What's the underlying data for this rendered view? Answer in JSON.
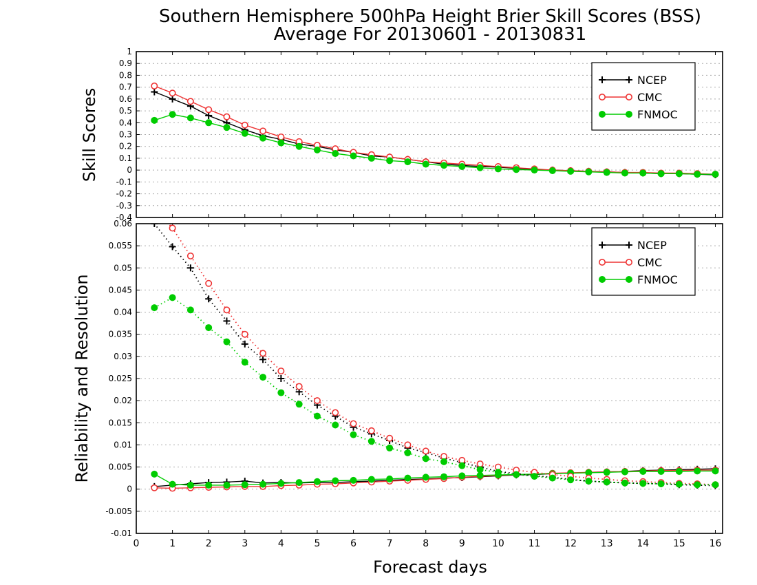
{
  "title_line1": "Southern Hemisphere 500hPa Height Brier Skill Scores (BSS)",
  "title_line2": "Average For 20130601 - 20130831",
  "colors": {
    "NCEP": "#000000",
    "CMC": "#ee3333",
    "FNMOC": "#00cc00",
    "grid": "#aaaaaa"
  },
  "chart_data": [
    {
      "type": "line",
      "ylabel": "Skill Scores",
      "xlim": [
        0,
        16.2
      ],
      "ylim": [
        -0.4,
        1
      ],
      "x_ticks": [
        "0",
        "1",
        "2",
        "3",
        "4",
        "5",
        "6",
        "7",
        "8",
        "9",
        "10",
        "11",
        "12",
        "13",
        "14",
        "15",
        "16"
      ],
      "y_ticks": [
        "-0.4",
        "-0.3",
        "-0.2",
        "-0.1",
        "0",
        "0.1",
        "0.2",
        "0.3",
        "0.4",
        "0.5",
        "0.6",
        "0.7",
        "0.8",
        "0.9",
        "1"
      ],
      "grid": true,
      "legend_position": "top-right",
      "x": [
        0.5,
        1,
        1.5,
        2,
        2.5,
        3,
        3.5,
        4,
        4.5,
        5,
        5.5,
        6,
        6.5,
        7,
        7.5,
        8,
        8.5,
        9,
        9.5,
        10,
        10.5,
        11,
        11.5,
        12,
        12.5,
        13,
        13.5,
        14,
        14.5,
        15,
        15.5,
        16
      ],
      "series": [
        {
          "name": "NCEP",
          "marker": "plus",
          "style": "solid",
          "values": [
            0.66,
            0.6,
            0.54,
            0.46,
            0.4,
            0.34,
            0.29,
            0.26,
            0.22,
            0.2,
            0.17,
            0.15,
            0.12,
            0.11,
            0.09,
            0.07,
            0.05,
            0.04,
            0.03,
            0.025,
            0.015,
            0.005,
            0.0,
            -0.005,
            -0.01,
            -0.015,
            -0.02,
            -0.025,
            -0.03,
            -0.03,
            -0.035,
            -0.04
          ]
        },
        {
          "name": "CMC",
          "marker": "open-circle",
          "style": "solid",
          "values": [
            0.71,
            0.65,
            0.58,
            0.51,
            0.45,
            0.38,
            0.33,
            0.28,
            0.24,
            0.21,
            0.18,
            0.15,
            0.13,
            0.11,
            0.09,
            0.07,
            0.06,
            0.05,
            0.04,
            0.03,
            0.02,
            0.01,
            0.0,
            -0.005,
            -0.01,
            -0.015,
            -0.02,
            -0.02,
            -0.025,
            -0.025,
            -0.03,
            -0.035
          ]
        },
        {
          "name": "FNMOC",
          "marker": "filled-circle",
          "style": "solid",
          "values": [
            0.42,
            0.47,
            0.44,
            0.4,
            0.36,
            0.31,
            0.27,
            0.23,
            0.2,
            0.17,
            0.14,
            0.12,
            0.1,
            0.08,
            0.07,
            0.05,
            0.04,
            0.03,
            0.02,
            0.01,
            0.005,
            0.0,
            -0.005,
            -0.01,
            -0.015,
            -0.02,
            -0.025,
            -0.025,
            -0.03,
            -0.03,
            -0.035,
            -0.035
          ]
        }
      ]
    },
    {
      "type": "line",
      "ylabel": "Reliability and Resolution",
      "xlabel": "Forecast days",
      "xlim": [
        0,
        16.2
      ],
      "ylim": [
        -0.01,
        0.06
      ],
      "x_ticks": [
        "0",
        "1",
        "2",
        "3",
        "4",
        "5",
        "6",
        "7",
        "8",
        "9",
        "10",
        "11",
        "12",
        "13",
        "14",
        "15",
        "16"
      ],
      "y_ticks": [
        "-0.01",
        "-0.005",
        "0",
        "0.005",
        "0.01",
        "0.015",
        "0.02",
        "0.025",
        "0.03",
        "0.035",
        "0.04",
        "0.045",
        "0.05",
        "0.055",
        "0.06"
      ],
      "grid": true,
      "legend_position": "top-right",
      "x": [
        0.5,
        1,
        1.5,
        2,
        2.5,
        3,
        3.5,
        4,
        4.5,
        5,
        5.5,
        6,
        6.5,
        7,
        7.5,
        8,
        8.5,
        9,
        9.5,
        10,
        10.5,
        11,
        11.5,
        12,
        12.5,
        13,
        13.5,
        14,
        14.5,
        15,
        15.5,
        16
      ],
      "series": [
        {
          "name": "NCEP",
          "marker": "plus",
          "style": "solid",
          "component": "reliability",
          "values": [
            0.0006,
            0.0009,
            0.0012,
            0.0015,
            0.0016,
            0.0018,
            0.0014,
            0.0015,
            0.0014,
            0.0015,
            0.0015,
            0.0017,
            0.0018,
            0.002,
            0.0022,
            0.0023,
            0.0025,
            0.0026,
            0.0028,
            0.003,
            0.0032,
            0.0033,
            0.0035,
            0.0036,
            0.0038,
            0.0039,
            0.004,
            0.0042,
            0.0043,
            0.0044,
            0.0045,
            0.0046
          ]
        },
        {
          "name": "CMC",
          "marker": "open-circle",
          "style": "solid",
          "component": "reliability",
          "values": [
            0.0003,
            0.0002,
            0.0003,
            0.0004,
            0.0005,
            0.0006,
            0.0006,
            0.0008,
            0.0009,
            0.0011,
            0.0012,
            0.0014,
            0.0016,
            0.0018,
            0.002,
            0.0022,
            0.0024,
            0.0027,
            0.0029,
            0.0031,
            0.0033,
            0.0034,
            0.0036,
            0.0037,
            0.0038,
            0.0039,
            0.004,
            0.0041,
            0.0042,
            0.0042,
            0.0043,
            0.0043
          ]
        },
        {
          "name": "FNMOC",
          "marker": "filled-circle",
          "style": "solid",
          "component": "reliability",
          "values": [
            0.0034,
            0.0011,
            0.0009,
            0.0009,
            0.0009,
            0.001,
            0.0011,
            0.0013,
            0.0015,
            0.0017,
            0.0019,
            0.002,
            0.0022,
            0.0023,
            0.0025,
            0.0027,
            0.0028,
            0.003,
            0.0031,
            0.0032,
            0.0033,
            0.0034,
            0.0035,
            0.0036,
            0.0037,
            0.0038,
            0.0039,
            0.004,
            0.004,
            0.004,
            0.0041,
            0.0041
          ]
        },
        {
          "name": "NCEP",
          "marker": "plus",
          "style": "dotted",
          "component": "resolution",
          "values": [
            0.06,
            0.0548,
            0.05,
            0.043,
            0.038,
            0.0328,
            0.0293,
            0.025,
            0.022,
            0.019,
            0.0165,
            0.014,
            0.0125,
            0.011,
            0.0093,
            0.0083,
            0.007,
            0.006,
            0.005,
            0.004,
            0.0035,
            0.003,
            0.0027,
            0.0022,
            0.0018,
            0.0016,
            0.0014,
            0.0013,
            0.0012,
            0.001,
            0.0009,
            0.0008
          ]
        },
        {
          "name": "CMC",
          "marker": "open-circle",
          "style": "dotted",
          "component": "resolution",
          "values": [
            0.0635,
            0.059,
            0.0527,
            0.0465,
            0.0405,
            0.035,
            0.0307,
            0.0267,
            0.0232,
            0.02,
            0.0173,
            0.0148,
            0.0132,
            0.0115,
            0.01,
            0.0086,
            0.0074,
            0.0065,
            0.0057,
            0.005,
            0.0043,
            0.0038,
            0.0033,
            0.0029,
            0.0025,
            0.0022,
            0.0019,
            0.0017,
            0.0015,
            0.0013,
            0.0012,
            0.001
          ]
        },
        {
          "name": "FNMOC",
          "marker": "filled-circle",
          "style": "dotted",
          "component": "resolution",
          "values": [
            0.041,
            0.0433,
            0.0405,
            0.0365,
            0.0333,
            0.0287,
            0.0253,
            0.0218,
            0.0192,
            0.0165,
            0.0145,
            0.0123,
            0.0108,
            0.0093,
            0.0082,
            0.0069,
            0.0062,
            0.0053,
            0.0044,
            0.0038,
            0.0033,
            0.0029,
            0.0025,
            0.0021,
            0.0018,
            0.0016,
            0.0014,
            0.0013,
            0.0012,
            0.0011,
            0.001,
            0.001
          ]
        }
      ]
    }
  ]
}
